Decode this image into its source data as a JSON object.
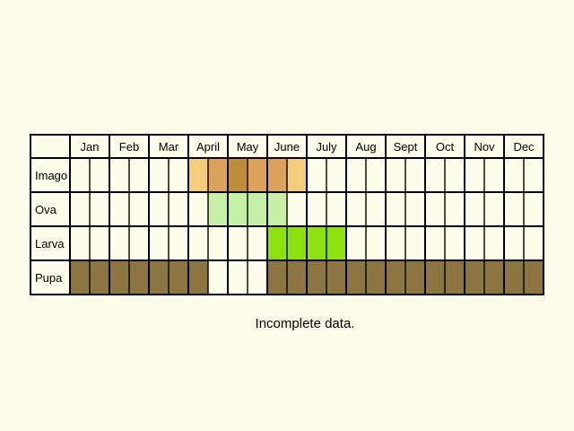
{
  "chart_data": {
    "type": "table",
    "title": "",
    "months": [
      "Jan",
      "Feb",
      "Mar",
      "April",
      "May",
      "June",
      "July",
      "Aug",
      "Sept",
      "Oct",
      "Nov",
      "Dec"
    ],
    "periods_per_month": 2,
    "stages": [
      {
        "name": "Imago",
        "cells": [
          {
            "period": 6,
            "intensity": "low"
          },
          {
            "period": 7,
            "intensity": "medium"
          },
          {
            "period": 8,
            "intensity": "high"
          },
          {
            "period": 9,
            "intensity": "medium"
          },
          {
            "period": 10,
            "intensity": "medium"
          },
          {
            "period": 11,
            "intensity": "low"
          }
        ]
      },
      {
        "name": "Ova",
        "cells": [
          {
            "period": 7,
            "intensity": "low"
          },
          {
            "period": 8,
            "intensity": "low"
          },
          {
            "period": 9,
            "intensity": "low"
          },
          {
            "period": 10,
            "intensity": "low"
          }
        ]
      },
      {
        "name": "Larva",
        "cells": [
          {
            "period": 10,
            "intensity": "high"
          },
          {
            "period": 11,
            "intensity": "high"
          },
          {
            "period": 12,
            "intensity": "high"
          },
          {
            "period": 13,
            "intensity": "high"
          }
        ]
      },
      {
        "name": "Pupa",
        "cells": [
          {
            "period": 0,
            "intensity": "high"
          },
          {
            "period": 1,
            "intensity": "high"
          },
          {
            "period": 2,
            "intensity": "high"
          },
          {
            "period": 3,
            "intensity": "high"
          },
          {
            "period": 4,
            "intensity": "high"
          },
          {
            "period": 5,
            "intensity": "high"
          },
          {
            "period": 6,
            "intensity": "high"
          },
          {
            "period": 10,
            "intensity": "high"
          },
          {
            "period": 11,
            "intensity": "high"
          },
          {
            "period": 12,
            "intensity": "high"
          },
          {
            "period": 13,
            "intensity": "high"
          },
          {
            "period": 14,
            "intensity": "high"
          },
          {
            "period": 15,
            "intensity": "high"
          },
          {
            "period": 16,
            "intensity": "high"
          },
          {
            "period": 17,
            "intensity": "high"
          },
          {
            "period": 18,
            "intensity": "high"
          },
          {
            "period": 19,
            "intensity": "high"
          },
          {
            "period": 20,
            "intensity": "high"
          },
          {
            "period": 21,
            "intensity": "high"
          },
          {
            "period": 22,
            "intensity": "high"
          },
          {
            "period": 23,
            "intensity": "high"
          }
        ]
      }
    ],
    "colors": {
      "Imago": {
        "low": "#f3cc7e",
        "medium": "#daa25d",
        "high": "#bf8c3c"
      },
      "Ova": {
        "low": "#c6f0a8"
      },
      "Larva": {
        "high": "#8ee00e"
      },
      "Pupa": {
        "high": "#8c7541"
      }
    },
    "grid": true,
    "legend": "none"
  },
  "note": "Incomplete data.",
  "background_color": "#fdfcea"
}
